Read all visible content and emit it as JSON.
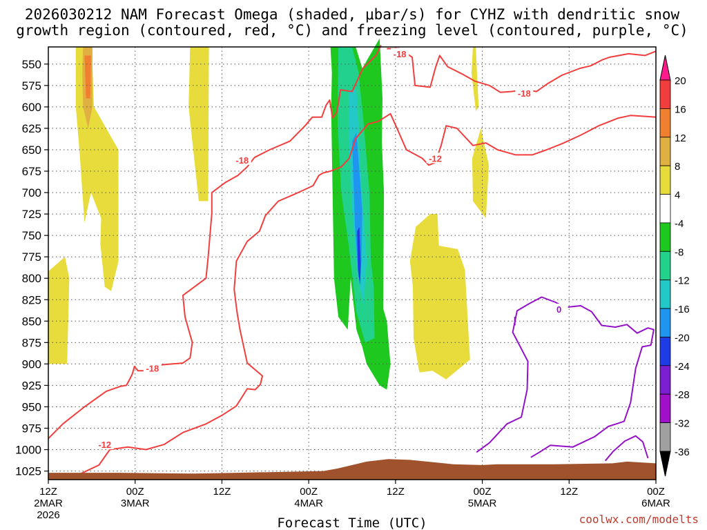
{
  "chart_data": {
    "type": "time-height contour",
    "title_line1": "2026030212 NAM Forecast Omega (shaded, μbar/s) for CYHZ with dendritic snow",
    "title_line2": "growth region (contoured, red, °C) and freezing level (contoured, purple, °C)",
    "xlabel": "Forecast Time (UTC)",
    "credit": "coolwx.com/modelts",
    "y_ticks": [
      "550",
      "575",
      "600",
      "625",
      "650",
      "675",
      "700",
      "725",
      "750",
      "775",
      "800",
      "825",
      "850",
      "875",
      "900",
      "925",
      "950",
      "975",
      "1000",
      "1025"
    ],
    "y_values": [
      550,
      575,
      600,
      625,
      650,
      675,
      700,
      725,
      750,
      775,
      800,
      825,
      850,
      875,
      900,
      925,
      950,
      975,
      1000,
      1025
    ],
    "y_range_hpa": [
      1035,
      530
    ],
    "x_ticks": [
      {
        "hour": 0,
        "l1": "12Z",
        "l2": "2MAR",
        "l3": "2026"
      },
      {
        "hour": 12,
        "l1": "00Z",
        "l2": "3MAR",
        "l3": ""
      },
      {
        "hour": 24,
        "l1": "12Z",
        "l2": "",
        "l3": ""
      },
      {
        "hour": 36,
        "l1": "00Z",
        "l2": "4MAR",
        "l3": ""
      },
      {
        "hour": 48,
        "l1": "12Z",
        "l2": "",
        "l3": ""
      },
      {
        "hour": 60,
        "l1": "00Z",
        "l2": "5MAR",
        "l3": ""
      },
      {
        "hour": 72,
        "l1": "12Z",
        "l2": "",
        "l3": ""
      },
      {
        "hour": 84,
        "l1": "00Z",
        "l2": "6MAR",
        "l3": ""
      }
    ],
    "x_range_hours": [
      0,
      84
    ],
    "colorbar": {
      "labels": [
        "20",
        "16",
        "12",
        "8",
        "4",
        "-4",
        "-8",
        "-12",
        "-16",
        "-20",
        "-24",
        "-28",
        "-32",
        "-36"
      ],
      "colors": [
        "#ff1a8c",
        "#f23d3d",
        "#f08030",
        "#e0b040",
        "#e8dc3c",
        "#ffffff",
        "#1ec81e",
        "#22d28c",
        "#22c8c8",
        "#1e96f0",
        "#1e3ce6",
        "#7a1ed2",
        "#a010c8",
        "#a0a0a0",
        "#000000"
      ]
    },
    "omega_colors": {
      "pos4": "#e8dc3c",
      "pos8": "#e0b040",
      "pos12": "#f08030",
      "neg4": "#1ec81e",
      "neg8": "#22d28c",
      "neg12": "#22c8c8",
      "neg16": "#1e96f0",
      "neg20": "#1e3ce6"
    },
    "contour_labels": [
      {
        "text": "-18",
        "hour": 48.6,
        "hpa": 538,
        "color": "#f23d3d"
      },
      {
        "text": "-18",
        "hour": 65.8,
        "hpa": 584,
        "color": "#f23d3d"
      },
      {
        "text": "-18",
        "hour": 26.8,
        "hpa": 662,
        "color": "#f23d3d"
      },
      {
        "text": "-12",
        "hour": 53.5,
        "hpa": 660,
        "color": "#f23d3d"
      },
      {
        "text": "-18",
        "hour": 14.4,
        "hpa": 905,
        "color": "#f23d3d"
      },
      {
        "text": "-12",
        "hour": 7.8,
        "hpa": 994,
        "color": "#f23d3d"
      },
      {
        "text": "0",
        "hour": 70.6,
        "hpa": 836,
        "color": "#9410c8"
      }
    ],
    "terrain_color": "#a0522d",
    "dsgz_color": "#f23d3d",
    "freezing_color": "#9410c8"
  }
}
